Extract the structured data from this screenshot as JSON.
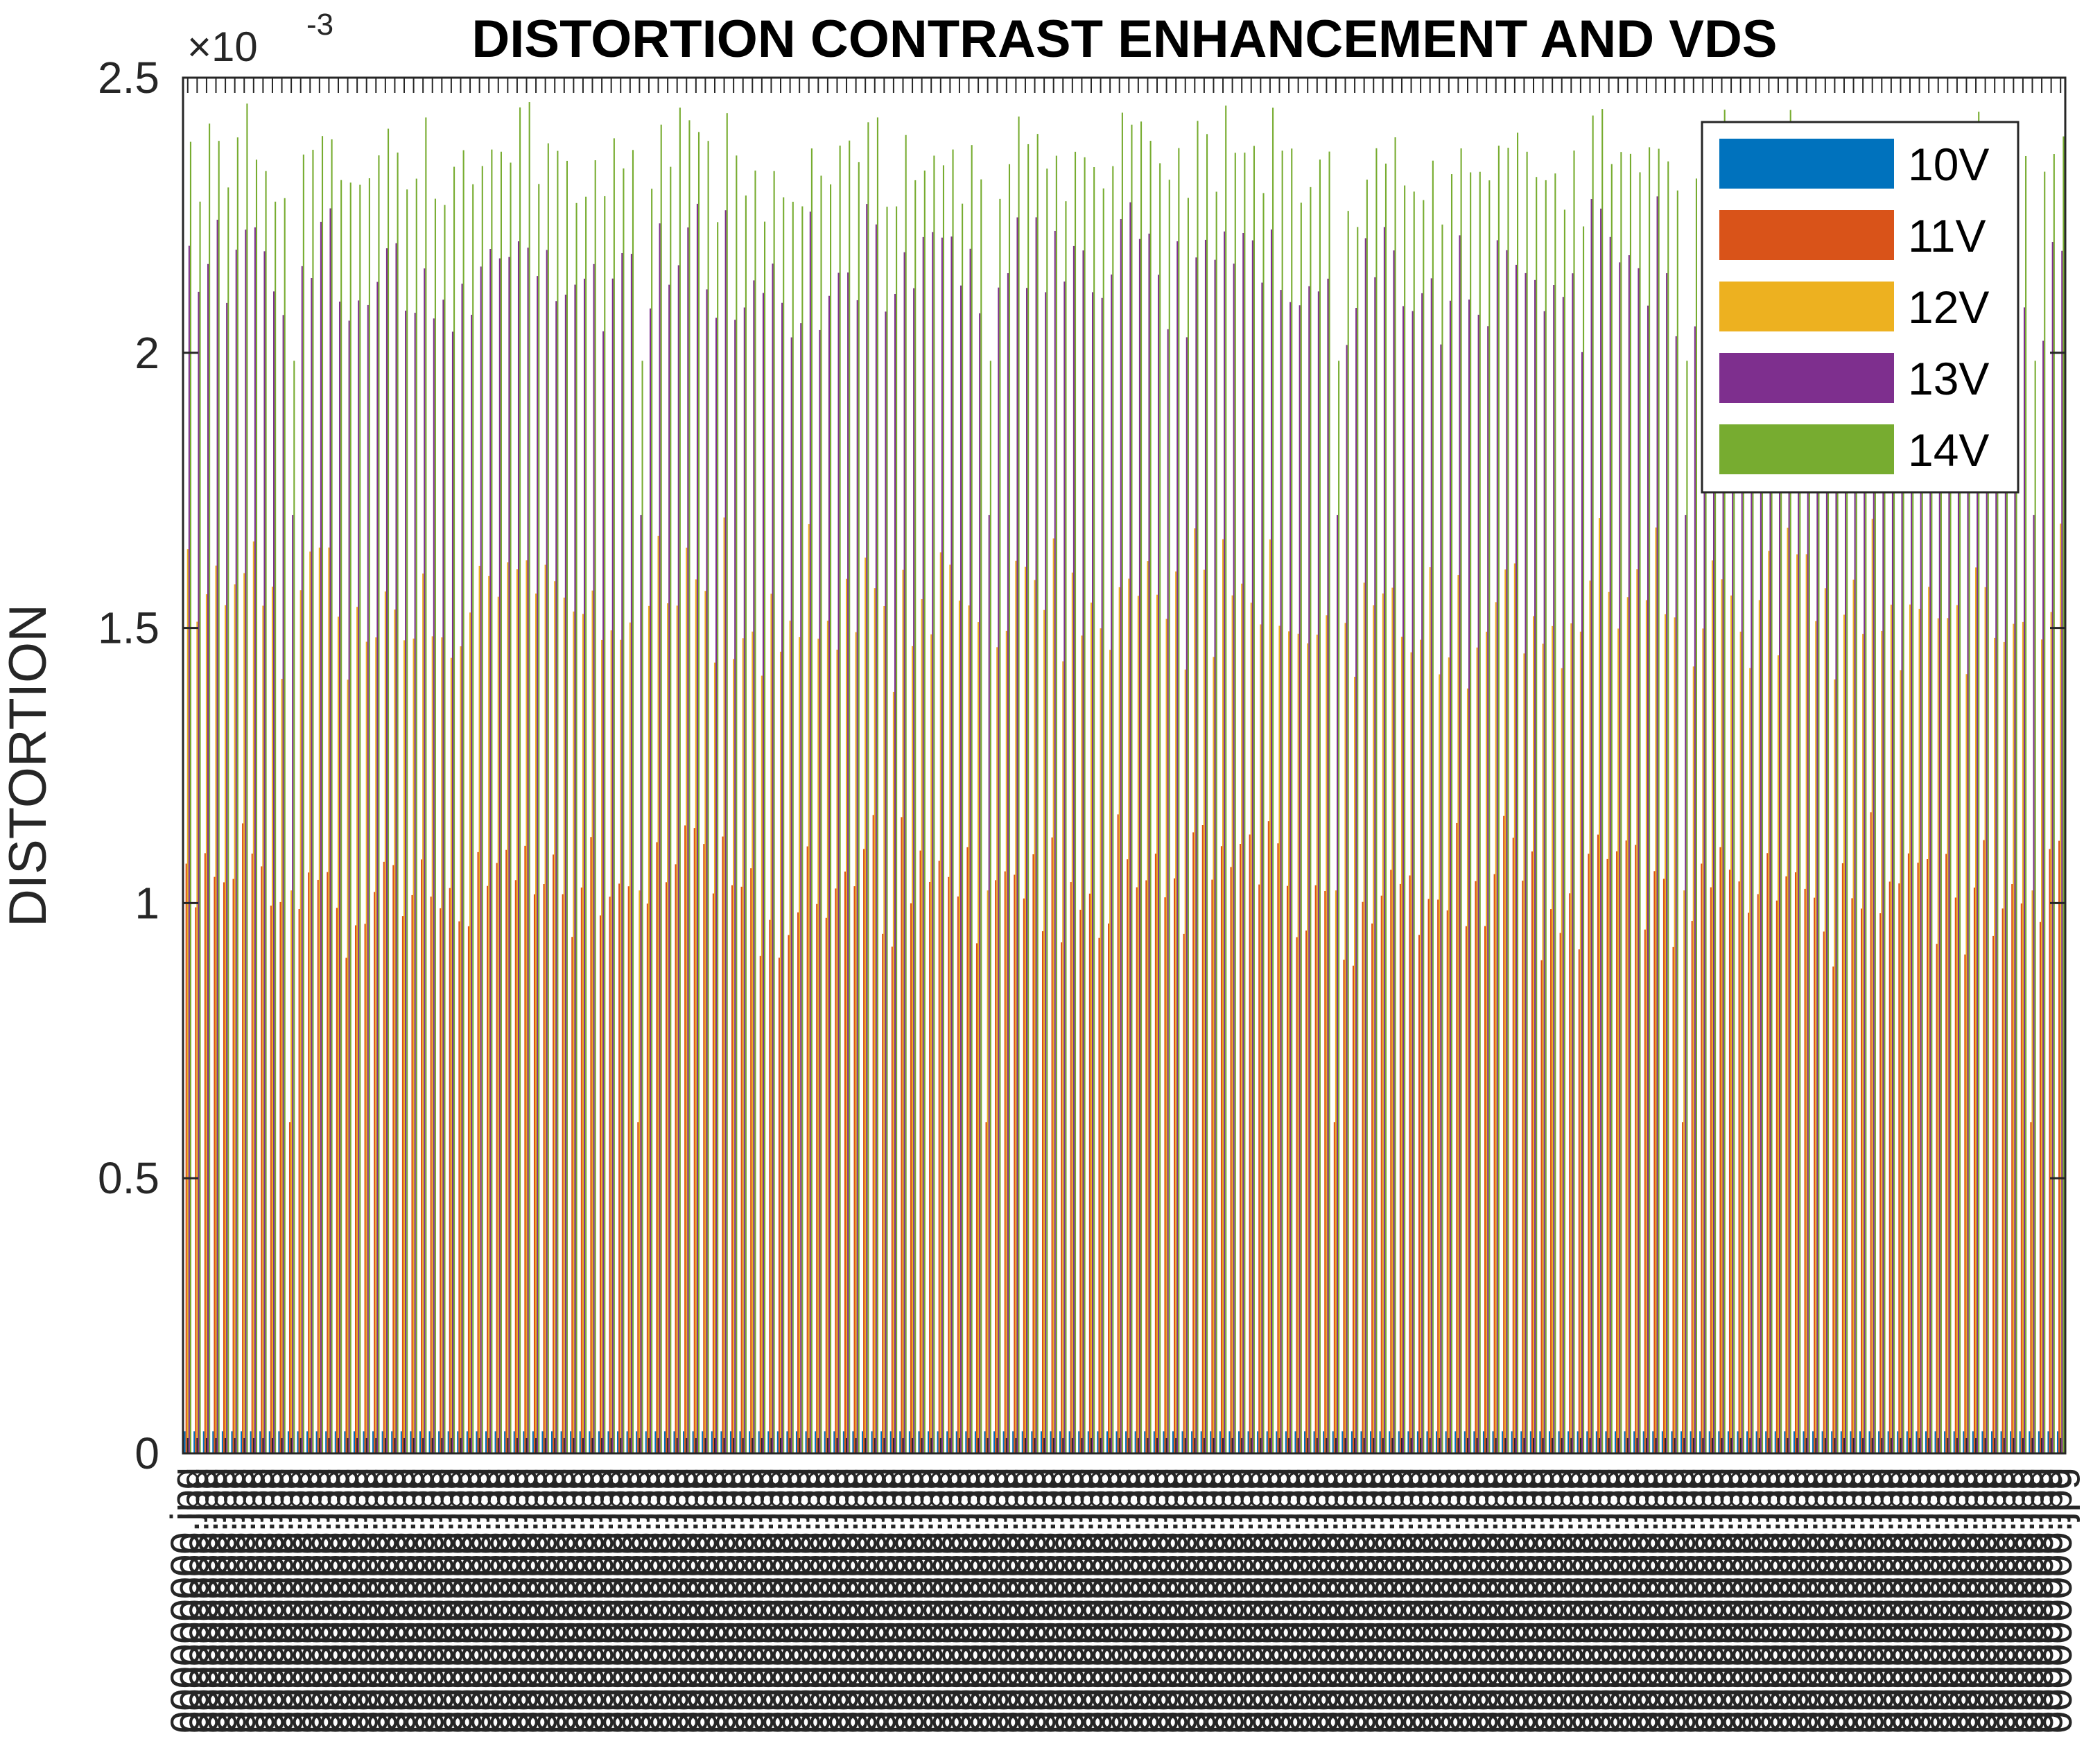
{
  "chart_data": {
    "type": "bar",
    "title": "DISTORTION CONTRAST ENHANCEMENT AND VDS",
    "xlabel": "",
    "ylabel": "DISTORTION",
    "y_exponent_label": "×10",
    "y_exponent_power": "-3",
    "ylim": [
      0,
      0.0025
    ],
    "yticks": [
      0,
      0.0005,
      0.001,
      0.0015,
      0.002,
      0.0025
    ],
    "ytick_labels": [
      "0",
      "0.5",
      "1",
      "1.5",
      "2",
      "2.5"
    ],
    "category_count": 200,
    "category_label_text": "000000000.jpg",
    "legend_position": "top-right",
    "grid": false,
    "series": [
      {
        "name": "10V",
        "color": "#0072BD",
        "value_range": [
          4e-05,
          4e-05
        ]
      },
      {
        "name": "11V",
        "color": "#D95319",
        "value_range": [
          0.0005,
          0.00118
        ]
      },
      {
        "name": "12V",
        "color": "#EDB120",
        "value_range": [
          0.0009,
          0.00172
        ]
      },
      {
        "name": "13V",
        "color": "#7E2F8E",
        "value_range": [
          0.0016,
          0.0023
        ]
      },
      {
        "name": "14V",
        "color": "#77AC30",
        "value_range": [
          0.0019,
          0.00247
        ]
      }
    ]
  }
}
